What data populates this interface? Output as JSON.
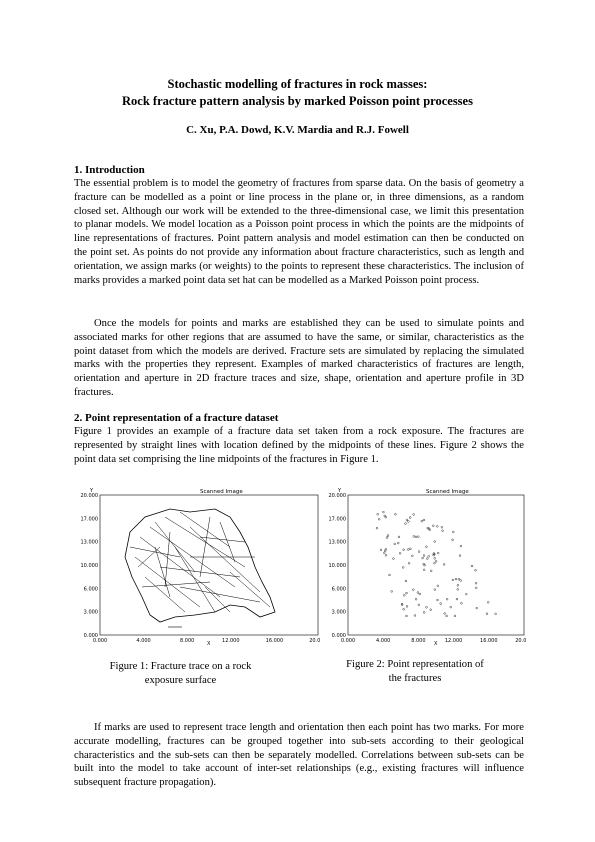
{
  "paper": {
    "title_line1": "Stochastic modelling of fractures in rock masses:",
    "title_line2": "Rock fracture pattern analysis by marked Poisson point processes",
    "authors": "C. Xu, P.A. Dowd, K.V. Mardia and R.J. Fowell"
  },
  "section1": {
    "heading": "1. Introduction",
    "para1": "The essential problem is to model the geometry of fractures from sparse data. On the basis of geometry a fracture can be modelled as a point or line process in the plane or, in three dimensions, as a random closed set. Although our work will be extended to the three-dimensional case, we limit this presentation to planar models. We model location as a Poisson point process in which the points are the midpoints of line representations of fractures. Point pattern analysis and model estimation can then be conducted on the point set. As points do not provide any information about fracture characteristics, such as length and orientation, we assign marks (or weights) to the points to represent these characteristics. The inclusion of marks provides a marked point data set hat can be modelled as a Marked Poisson point process.",
    "para2": "Once the models for points and marks are established they can be used to simulate points and associated marks for other regions that are assumed to have the same, or similar, characteristics as the point dataset from which the models are derived.  Fracture sets are simulated by replacing the simulated marks with the properties they represent.  Examples of marked characteristics of fractures are length, orientation and aperture in 2D fracture traces and size, shape, orientation and aperture profile in 3D fractures."
  },
  "section2": {
    "heading": "2. Point representation of a fracture dataset",
    "para1": "Figure 1 provides an example of a fracture data set taken from a rock exposure.  The fractures are represented by straight lines with location defined by the midpoints of these lines. Figure 2 shows the point data set comprising the line midpoints of the fractures in Figure 1.",
    "para2": "If marks are used to represent trace length and orientation then each point has two marks. For more accurate modelling, fractures can be grouped together into sub-sets according to their geological characteristics and the sub-sets can then be separately modelled. Correlations between sub-sets can be built into the model to take account of inter-set relationships (e.g., existing fractures will influence subsequent fracture propagation)."
  },
  "figure1": {
    "panel_title": "Scanned Image",
    "caption_line1": "Figure 1:  Fracture trace on a rock",
    "caption_line2": "exposure surface",
    "y_ticks": [
      "20.000",
      "17.000",
      "13.000",
      "10.000",
      "6.000",
      "3.000",
      "0.000"
    ],
    "x_ticks": [
      "0.000",
      "4.000",
      "8.000",
      "12.000",
      "16.000",
      "20.000"
    ],
    "x_axis_label": "X",
    "y_axis_label": "Y"
  },
  "figure2": {
    "panel_title": "Scanned Image",
    "caption_line1": "Figure 2:  Point representation of",
    "caption_line2": "the fractures",
    "y_ticks": [
      "20.000",
      "17.000",
      "13.000",
      "10.000",
      "6.000",
      "3.000",
      "0.000"
    ],
    "x_ticks": [
      "0.000",
      "4.000",
      "8.000",
      "12.000",
      "16.000",
      "20.000"
    ],
    "x_axis_label": "X",
    "y_axis_label": "Y"
  }
}
